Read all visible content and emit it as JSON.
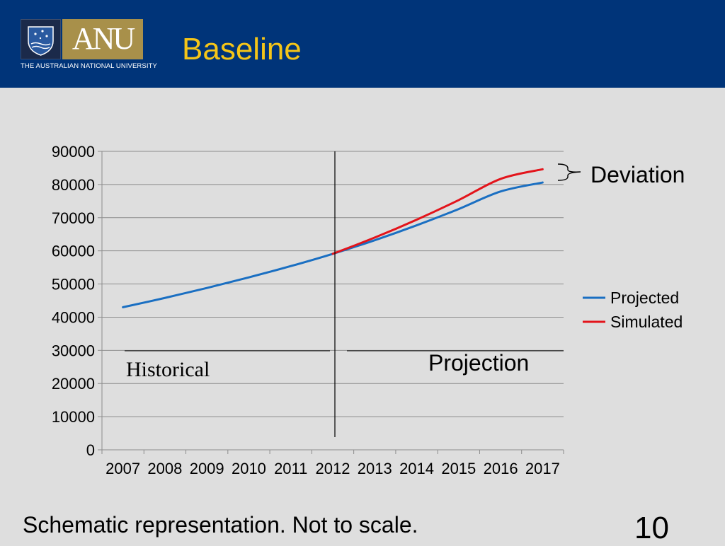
{
  "header": {
    "logo_wordmark": "ANU",
    "university_name": "THE AUSTRALIAN NATIONAL UNIVERSITY",
    "background_color": "#003479",
    "title_color": "#f5c518"
  },
  "slide": {
    "title": "Baseline",
    "footnote": "Schematic representation. Not to scale.",
    "page_number": "10"
  },
  "annotations": {
    "historical": "Historical",
    "projection": "Projection",
    "deviation": "Deviation"
  },
  "chart_data": {
    "type": "line",
    "title": "",
    "xlabel": "",
    "ylabel": "",
    "categories": [
      "2007",
      "2008",
      "2009",
      "2010",
      "2011",
      "2012",
      "2013",
      "2014",
      "2015",
      "2016",
      "2017"
    ],
    "ylim": [
      0,
      90000
    ],
    "yticks": [
      0,
      10000,
      20000,
      30000,
      40000,
      50000,
      60000,
      70000,
      80000,
      90000
    ],
    "grid": true,
    "legend": "right",
    "divider_year": "2012/2013",
    "series": [
      {
        "name": "Projected",
        "color": "#1a6fc2",
        "values": [
          43000,
          45800,
          48800,
          52000,
          55400,
          59100,
          63200,
          67700,
          72600,
          77900,
          80600
        ]
      },
      {
        "name": "Simulated",
        "color": "#e3141b",
        "values": [
          null,
          null,
          null,
          null,
          null,
          59100,
          64000,
          69400,
          75300,
          81700,
          84600
        ]
      }
    ]
  }
}
